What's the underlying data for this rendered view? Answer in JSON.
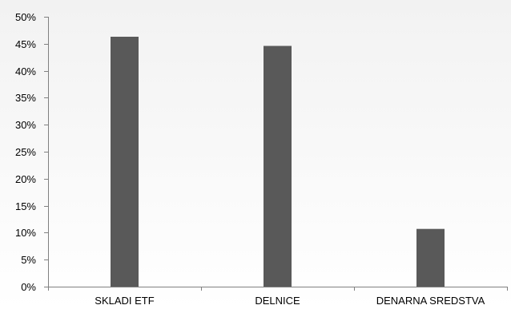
{
  "chart_data": {
    "type": "bar",
    "categories": [
      "SKLADI ETF",
      "DELNICE",
      "DENARNA SREDSTVA"
    ],
    "values": [
      46.3,
      44.6,
      10.7
    ],
    "ylim": [
      0,
      50
    ],
    "ytick_step": 5,
    "ytick_labels": [
      "0%",
      "5%",
      "10%",
      "15%",
      "20%",
      "25%",
      "30%",
      "35%",
      "40%",
      "45%",
      "50%"
    ],
    "grid": false,
    "legend": "none",
    "colors": {
      "bar": "#595959",
      "axis": "#808080",
      "background_top": "#f2f2f2",
      "background_bottom": "#ffffff"
    }
  }
}
